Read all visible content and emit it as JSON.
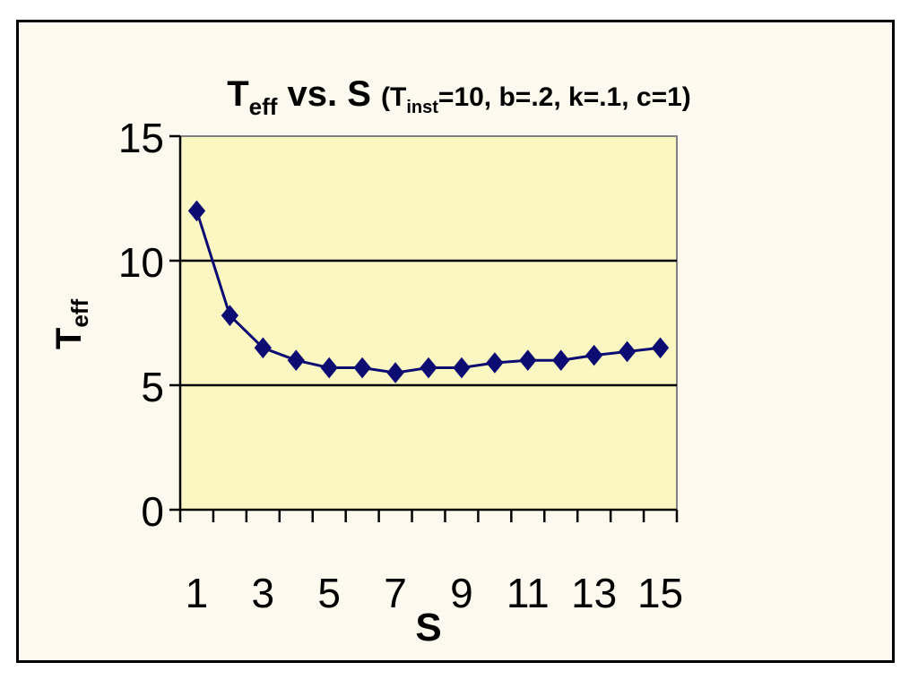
{
  "chart_data": {
    "type": "line",
    "title": {
      "main": "T",
      "main_sub": "eff",
      "main_rest": " vs. S ",
      "params_open": "(T",
      "params_sub": "inst",
      "params_rest": "=10, b=.2, k=.1, c=1)"
    },
    "xlabel": "S",
    "ylabel": "T",
    "ylabel_sub": "eff",
    "xlim": [
      0.5,
      15.5
    ],
    "ylim": [
      0,
      15
    ],
    "y_ticks": [
      0,
      5,
      10,
      15
    ],
    "x_tick_labels": [
      1,
      3,
      5,
      7,
      9,
      11,
      13,
      15
    ],
    "grid": "horizontal",
    "plot_background": "#fbf7c3",
    "series": [
      {
        "color": "#0b0b72",
        "marker": "diamond",
        "x": [
          1,
          2,
          3,
          4,
          5,
          6,
          7,
          8,
          9,
          10,
          11,
          12,
          13,
          14,
          15
        ],
        "y": [
          12.0,
          7.8,
          6.5,
          6.0,
          5.7,
          5.7,
          5.5,
          5.7,
          5.7,
          5.9,
          6.0,
          6.0,
          6.2,
          6.35,
          6.5
        ]
      }
    ]
  }
}
